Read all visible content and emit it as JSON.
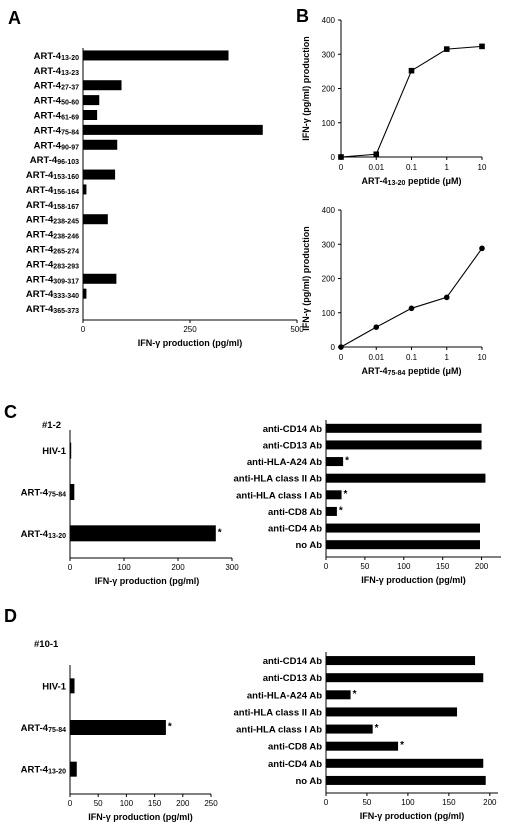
{
  "panels": {
    "A": "A",
    "B": "B",
    "C": "C",
    "D": "D"
  },
  "chart_data": [
    {
      "id": "A",
      "type": "bar",
      "orientation": "horizontal",
      "categories": [
        "ART-4 13-20",
        "ART-4 13-23",
        "ART-4 27-37",
        "ART-4 50-60",
        "ART-4 61-69",
        "ART-4 75-84",
        "ART-4 90-97",
        "ART-4 96-103",
        "ART-4 153-160",
        "ART-4 156-164",
        "ART-4 158-167",
        "ART-4 238-245",
        "ART-4 238-246",
        "ART-4 265-274",
        "ART-4 283-293",
        "ART-4 309-317",
        "ART-4 333-340",
        "ART-4 365-373"
      ],
      "values": [
        340,
        0,
        90,
        38,
        33,
        420,
        80,
        0,
        75,
        8,
        0,
        58,
        0,
        0,
        0,
        78,
        8,
        0
      ],
      "xlabel": "IFN-γ production (pg/ml)",
      "ylabel": "",
      "xlim": [
        0,
        500
      ],
      "xticks": [
        "0",
        "250",
        "500"
      ]
    },
    {
      "id": "B1",
      "type": "line",
      "x_scale": "log",
      "x": [
        "0",
        "0.01",
        "0.1",
        "1",
        "10"
      ],
      "values": [
        0,
        8,
        252,
        315,
        323
      ],
      "xlabel": "ART-4 13-20 peptide (μM)",
      "ylabel": "IFN-γ (pg/ml) production",
      "ylim": [
        0,
        400
      ],
      "yticks": [
        "0",
        "100",
        "200",
        "300",
        "400"
      ],
      "marker": "square"
    },
    {
      "id": "B2",
      "type": "line",
      "x_scale": "log",
      "x": [
        "0",
        "0.01",
        "0.1",
        "1",
        "10"
      ],
      "values": [
        0,
        58,
        113,
        145,
        288
      ],
      "xlabel": "ART-4 75-84 peptide (μM)",
      "ylabel": "IFN-γ (pg/ml) production",
      "ylim": [
        0,
        400
      ],
      "yticks": [
        "0",
        "100",
        "200",
        "300",
        "400"
      ],
      "marker": "circle"
    },
    {
      "id": "C-left",
      "type": "bar",
      "orientation": "horizontal",
      "subtitle": "#1-2",
      "categories": [
        "HIV-1",
        "ART-4 75-84",
        "ART-4 13-20"
      ],
      "values": [
        2,
        8,
        270
      ],
      "significant": [
        false,
        false,
        true
      ],
      "xlabel": "IFN-γ production (pg/ml)",
      "xlim": [
        0,
        300
      ],
      "xticks": [
        "0",
        "100",
        "200",
        "300"
      ]
    },
    {
      "id": "C-right",
      "type": "bar",
      "orientation": "horizontal",
      "categories": [
        "anti-CD14 Ab",
        "anti-CD13 Ab",
        "anti-HLA-A24 Ab",
        "anti-HLA class II Ab",
        "anti-HLA class I Ab",
        "anti-CD8 Ab",
        "anti-CD4 Ab",
        "no Ab"
      ],
      "values": [
        200,
        200,
        22,
        205,
        20,
        14,
        198,
        198
      ],
      "significant": [
        false,
        false,
        true,
        false,
        true,
        true,
        false,
        false
      ],
      "xlabel": "IFN-γ production (pg/ml)",
      "xlim": [
        0,
        225
      ],
      "xticks": [
        "0",
        "50",
        "100",
        "150",
        "200"
      ]
    },
    {
      "id": "D-left",
      "type": "bar",
      "orientation": "horizontal",
      "subtitle": "#10-1",
      "categories": [
        "HIV-1",
        "ART-4 75-84",
        "ART-4 13-20"
      ],
      "values": [
        8,
        170,
        12
      ],
      "significant": [
        false,
        true,
        false
      ],
      "xlabel": "IFN-γ production (pg/ml)",
      "xlim": [
        0,
        250
      ],
      "xticks": [
        "0",
        "50",
        "100",
        "150",
        "200",
        "250"
      ]
    },
    {
      "id": "D-right",
      "type": "bar",
      "orientation": "horizontal",
      "categories": [
        "anti-CD14 Ab",
        "anti-CD13 Ab",
        "anti-HLA-A24 Ab",
        "anti-HLA class II Ab",
        "anti-HLA class I Ab",
        "anti-CD8 Ab",
        "anti-CD4 Ab",
        "no Ab"
      ],
      "values": [
        182,
        192,
        30,
        160,
        57,
        88,
        192,
        195
      ],
      "significant": [
        false,
        false,
        true,
        false,
        true,
        true,
        false,
        false
      ],
      "xlabel": "IFN-γ production (pg/ml)",
      "xlim": [
        0,
        210
      ],
      "xticks": [
        "0",
        "50",
        "100",
        "150",
        "200"
      ]
    }
  ]
}
